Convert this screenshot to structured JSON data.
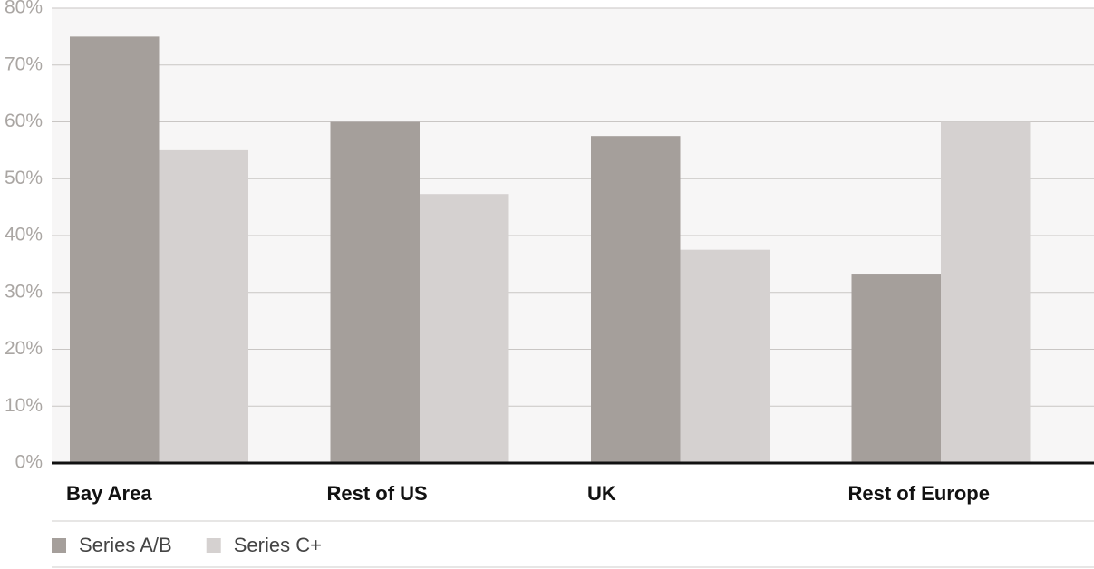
{
  "chart_data": {
    "type": "bar",
    "categories": [
      "Bay Area",
      "Rest of US",
      "UK",
      "Rest of Europe"
    ],
    "series": [
      {
        "name": "Series A/B",
        "color": "#a59f9b",
        "values": [
          75,
          60,
          57.5,
          33.3
        ]
      },
      {
        "name": "Series C+",
        "color": "#d5d1d0",
        "values": [
          55,
          47.3,
          37.5,
          60
        ]
      }
    ],
    "ylim": [
      0,
      80
    ],
    "yticks": [
      {
        "value": 0,
        "label": "0%"
      },
      {
        "value": 10,
        "label": "10%"
      },
      {
        "value": 20,
        "label": "20%"
      },
      {
        "value": 30,
        "label": "30%"
      },
      {
        "value": 40,
        "label": "40%"
      },
      {
        "value": 50,
        "label": "50%"
      },
      {
        "value": 60,
        "label": "60%"
      },
      {
        "value": 70,
        "label": "70%"
      },
      {
        "value": 80,
        "label": "80%"
      }
    ],
    "grid": true,
    "legend": "bottom"
  }
}
